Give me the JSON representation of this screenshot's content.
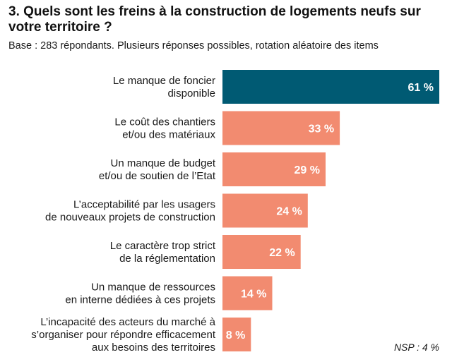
{
  "chart_data": {
    "type": "bar",
    "orientation": "horizontal",
    "title": "3. Quels sont les freins à la construction de logements neufs sur votre territoire ?",
    "subtitle": "Base : 283 répondants. Plusieurs réponses possibles, rotation aléatoire des items",
    "categories": [
      [
        "Le manque de foncier",
        "disponible"
      ],
      [
        "Le coût des chantiers",
        "et/ou des matériaux"
      ],
      [
        "Un manque de budget",
        "et/ou de soutien de l’Etat"
      ],
      [
        "L’acceptabilité par les usagers",
        "de nouveaux projets de construction"
      ],
      [
        "Le caractère trop strict",
        "de la réglementation"
      ],
      [
        "Un manque de ressources",
        "en interne dédiées à ces projets"
      ],
      [
        "L’incapacité des acteurs du marché à",
        "s’organiser pour répondre efficacement",
        "aux besoins des territoires"
      ]
    ],
    "values": [
      61,
      33,
      29,
      24,
      22,
      14,
      8
    ],
    "value_labels": [
      "61 %",
      "33 %",
      "29 %",
      "24 %",
      "22 %",
      "14 %",
      "8 %"
    ],
    "xlim": [
      0,
      61
    ],
    "highlight_color": "#005a73",
    "bar_color": "#f28b70",
    "note": "NSP : 4 %"
  }
}
